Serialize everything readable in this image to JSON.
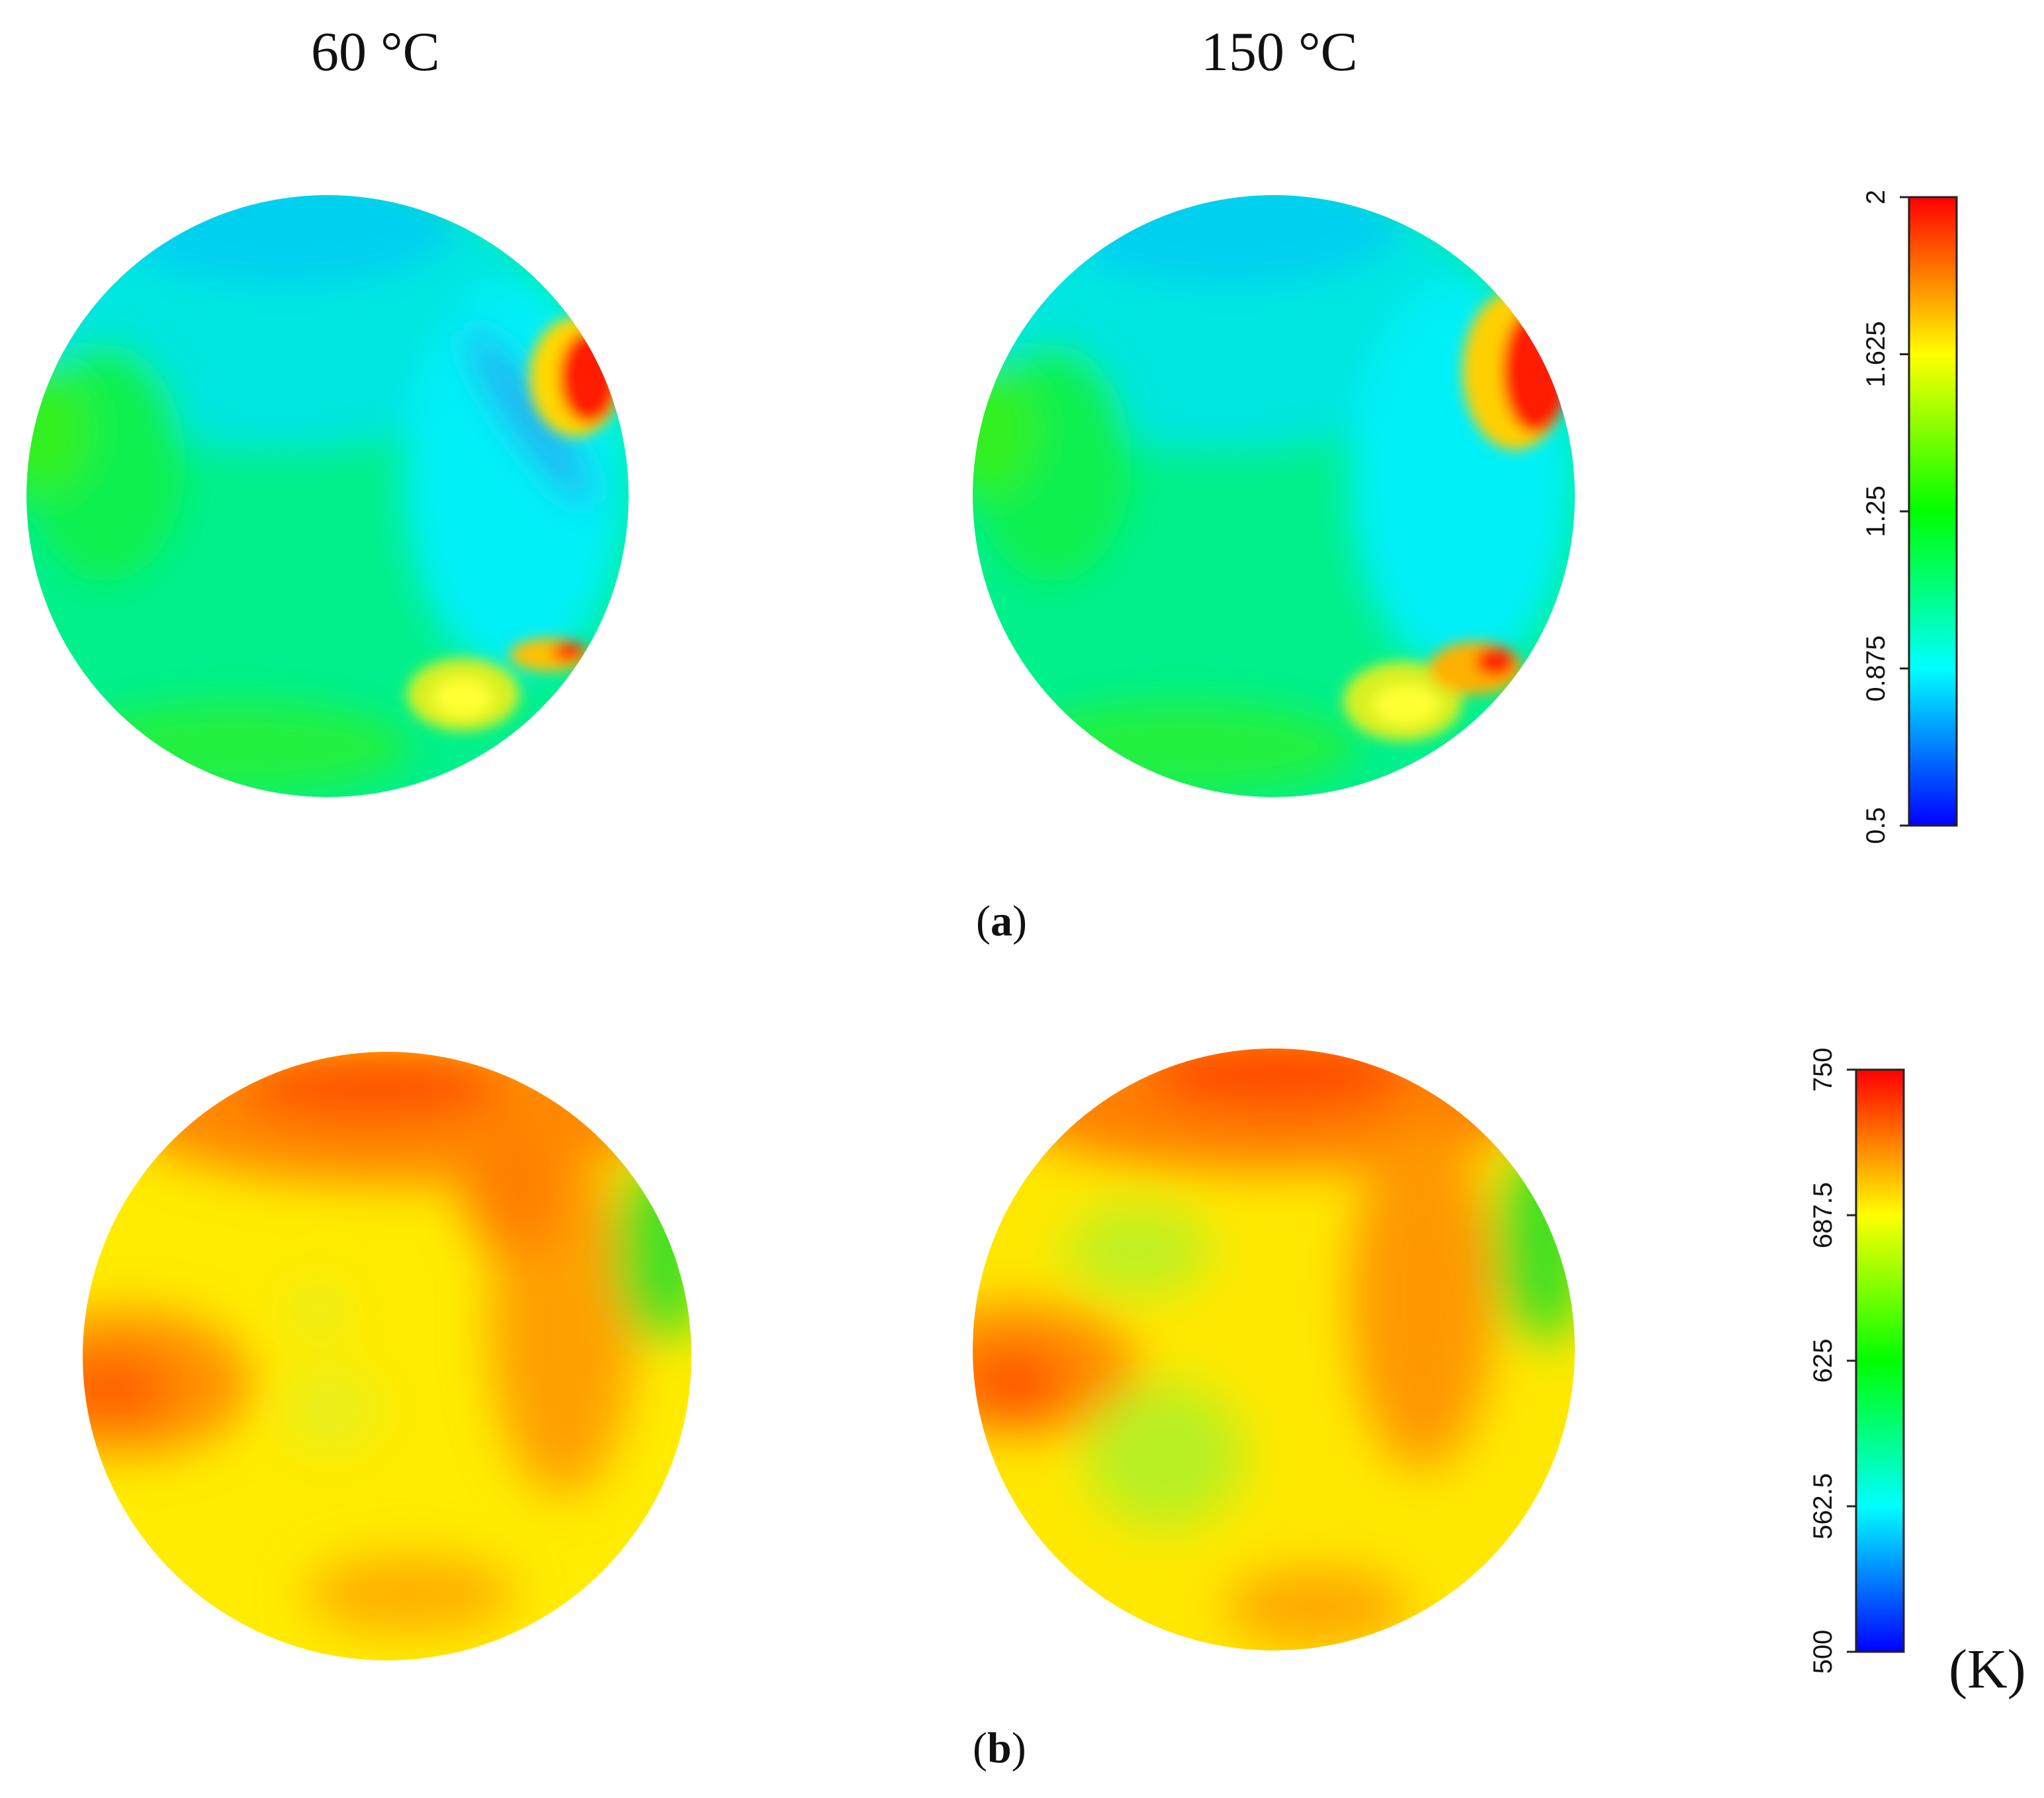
{
  "column_titles": [
    "60 °C",
    "150 °C"
  ],
  "panel_labels": [
    {
      "open": "(",
      "letter": "a",
      "close": ")"
    },
    {
      "open": "(",
      "letter": "b",
      "close": ")"
    }
  ],
  "chart_data": [
    {
      "type": "heatmap",
      "panel": "a",
      "maps": [
        "60 °C",
        "150 °C"
      ],
      "colorbar": {
        "min": 0.5,
        "max": 2,
        "ticks": [
          "0.5",
          "0.875",
          "1.25",
          "1.625",
          "2"
        ],
        "tick_values": [
          0.5,
          0.875,
          1.25,
          1.625,
          2
        ],
        "unit": "",
        "colors": [
          "#0000ff",
          "#00ffff",
          "#00ff00",
          "#ffff00",
          "#ff0000"
        ]
      }
    },
    {
      "type": "heatmap",
      "panel": "b",
      "maps": [
        "60 °C",
        "150 °C"
      ],
      "colorbar": {
        "min": 500,
        "max": 750,
        "ticks": [
          "500",
          "562.5",
          "625",
          "687.5",
          "750"
        ],
        "tick_values": [
          500,
          562.5,
          625,
          687.5,
          750
        ],
        "unit": "(K)",
        "colors": [
          "#0000ff",
          "#00ffff",
          "#00ff00",
          "#ffff00",
          "#ff0000"
        ]
      }
    }
  ]
}
